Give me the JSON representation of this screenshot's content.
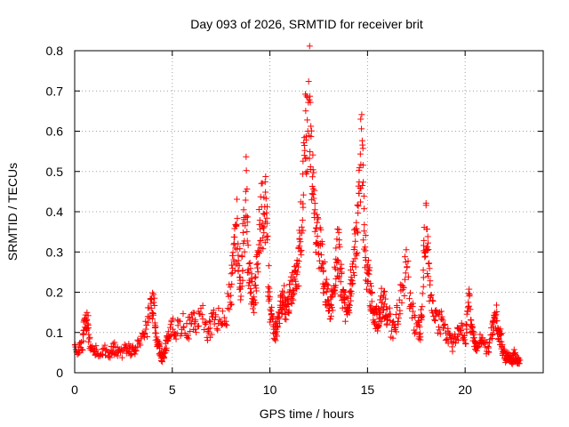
{
  "chart_data": {
    "type": "scatter",
    "title": "Day 093 of 2026, SRMTID for receiver brit",
    "xlabel": "GPS time / hours",
    "ylabel": "SRMTID / TECUs",
    "xlim": [
      0,
      24
    ],
    "ylim": [
      0,
      0.8
    ],
    "xticks": [
      0,
      5,
      10,
      15,
      20
    ],
    "xtick_labels": [
      "0",
      "5",
      "10",
      "15",
      "20"
    ],
    "yticks": [
      0,
      0.1,
      0.2,
      0.3,
      0.4,
      0.5,
      0.6,
      0.7,
      0.8
    ],
    "ytick_labels": [
      "0",
      "0.1",
      "0.2",
      "0.3",
      "0.4",
      "0.5",
      "0.6",
      "0.7",
      "0.8"
    ],
    "grid": true,
    "marker": "+",
    "color": "#ff0000",
    "series": [
      {
        "name": "SRMTID",
        "x": [
          0.0,
          0.2,
          0.4,
          0.5,
          0.6,
          0.7,
          0.8,
          1.0,
          1.2,
          1.5,
          1.8,
          2.0,
          2.2,
          2.5,
          2.8,
          3.0,
          3.2,
          3.5,
          3.7,
          3.9,
          4.0,
          4.1,
          4.2,
          4.3,
          4.4,
          4.5,
          4.6,
          4.7,
          4.8,
          5.0,
          5.2,
          5.5,
          5.8,
          6.0,
          6.2,
          6.5,
          6.8,
          7.0,
          7.2,
          7.5,
          7.8,
          8.0,
          8.1,
          8.2,
          8.3,
          8.4,
          8.5,
          8.6,
          8.7,
          8.8,
          8.9,
          9.0,
          9.1,
          9.2,
          9.3,
          9.4,
          9.5,
          9.6,
          9.7,
          9.8,
          9.9,
          10.0,
          10.1,
          10.2,
          10.3,
          10.4,
          10.5,
          10.6,
          10.7,
          10.8,
          10.9,
          11.0,
          11.1,
          11.2,
          11.3,
          11.4,
          11.5,
          11.6,
          11.7,
          11.8,
          11.9,
          12.0,
          12.1,
          12.2,
          12.3,
          12.4,
          12.5,
          12.6,
          12.7,
          12.8,
          12.9,
          13.0,
          13.1,
          13.2,
          13.3,
          13.4,
          13.5,
          13.6,
          13.7,
          13.8,
          13.9,
          14.0,
          14.1,
          14.2,
          14.3,
          14.4,
          14.5,
          14.6,
          14.7,
          14.8,
          14.9,
          15.0,
          15.1,
          15.2,
          15.3,
          15.4,
          15.5,
          15.6,
          15.7,
          15.8,
          15.9,
          16.0,
          16.2,
          16.4,
          16.6,
          16.8,
          17.0,
          17.2,
          17.4,
          17.6,
          17.7,
          17.8,
          17.9,
          18.0,
          18.1,
          18.2,
          18.4,
          18.6,
          18.8,
          19.0,
          19.2,
          19.4,
          19.6,
          19.8,
          20.0,
          20.1,
          20.2,
          20.3,
          20.4,
          20.5,
          20.6,
          20.8,
          21.0,
          21.2,
          21.4,
          21.5,
          21.6,
          21.7,
          21.8,
          21.9,
          22.0,
          22.1,
          22.2,
          22.3,
          22.4,
          22.5,
          22.6,
          22.7
        ],
        "y": [
          0.07,
          0.06,
          0.08,
          0.12,
          0.14,
          0.13,
          0.06,
          0.06,
          0.05,
          0.06,
          0.05,
          0.07,
          0.06,
          0.06,
          0.07,
          0.06,
          0.07,
          0.1,
          0.13,
          0.17,
          0.18,
          0.16,
          0.1,
          0.07,
          0.05,
          0.04,
          0.05,
          0.08,
          0.1,
          0.12,
          0.11,
          0.13,
          0.12,
          0.14,
          0.13,
          0.15,
          0.11,
          0.13,
          0.14,
          0.15,
          0.17,
          0.22,
          0.28,
          0.35,
          0.4,
          0.32,
          0.22,
          0.3,
          0.4,
          0.49,
          0.3,
          0.25,
          0.22,
          0.2,
          0.25,
          0.32,
          0.4,
          0.44,
          0.4,
          0.48,
          0.28,
          0.18,
          0.14,
          0.12,
          0.1,
          0.13,
          0.16,
          0.19,
          0.21,
          0.18,
          0.17,
          0.2,
          0.22,
          0.24,
          0.26,
          0.28,
          0.32,
          0.4,
          0.46,
          0.58,
          0.68,
          0.75,
          0.6,
          0.52,
          0.42,
          0.38,
          0.35,
          0.33,
          0.28,
          0.25,
          0.22,
          0.2,
          0.18,
          0.2,
          0.24,
          0.3,
          0.34,
          0.28,
          0.22,
          0.2,
          0.18,
          0.17,
          0.21,
          0.25,
          0.3,
          0.35,
          0.42,
          0.51,
          0.62,
          0.4,
          0.3,
          0.27,
          0.24,
          0.2,
          0.17,
          0.15,
          0.14,
          0.16,
          0.18,
          0.2,
          0.18,
          0.15,
          0.13,
          0.12,
          0.17,
          0.24,
          0.3,
          0.18,
          0.14,
          0.12,
          0.11,
          0.16,
          0.33,
          0.39,
          0.3,
          0.22,
          0.18,
          0.14,
          0.13,
          0.11,
          0.09,
          0.08,
          0.1,
          0.12,
          0.08,
          0.14,
          0.22,
          0.12,
          0.1,
          0.08,
          0.07,
          0.09,
          0.08,
          0.06,
          0.12,
          0.13,
          0.15,
          0.11,
          0.1,
          0.07,
          0.05,
          0.04,
          0.05,
          0.04,
          0.03,
          0.05,
          0.04,
          0.03
        ]
      }
    ]
  }
}
